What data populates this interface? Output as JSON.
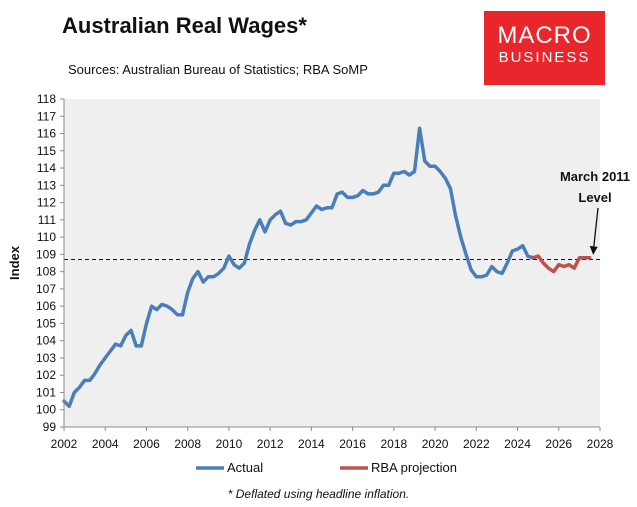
{
  "header": {
    "title": "Australian Real Wages*",
    "sources": "Sources: Australian Bureau of Statistics; RBA SoMP"
  },
  "logo": {
    "line1": "MACRO",
    "line2": "BUSINESS",
    "color": "#e8262b"
  },
  "footnote": "* Deflated using headline inflation.",
  "chart_data": {
    "type": "line",
    "title": "Australian Real Wages*",
    "xlabel": "",
    "ylabel": "Index",
    "xlim": [
      2002,
      2028
    ],
    "ylim": [
      99,
      118
    ],
    "x_ticks": [
      "2002",
      "2004",
      "2006",
      "2008",
      "2010",
      "2012",
      "2014",
      "2016",
      "2018",
      "2020",
      "2022",
      "2024",
      "2026",
      "2028"
    ],
    "y_ticks": [
      "99",
      "100",
      "101",
      "102",
      "103",
      "104",
      "105",
      "106",
      "107",
      "108",
      "109",
      "110",
      "111",
      "112",
      "113",
      "114",
      "115",
      "116",
      "117",
      "118"
    ],
    "grid": false,
    "background": "#efefef",
    "legend": "bottom",
    "reference_line": {
      "y": 108.7,
      "style": "dashed"
    },
    "annotation": {
      "line1": "March 2011",
      "line2": "Level",
      "points_to": [
        2027.5,
        108.8
      ]
    },
    "series": [
      {
        "name": "Actual",
        "color": "#4a7ebb",
        "x": [
          2002.0,
          2002.25,
          2002.5,
          2002.75,
          2003.0,
          2003.25,
          2003.5,
          2003.75,
          2004.0,
          2004.25,
          2004.5,
          2004.75,
          2005.0,
          2005.25,
          2005.5,
          2005.75,
          2006.0,
          2006.25,
          2006.5,
          2006.75,
          2007.0,
          2007.25,
          2007.5,
          2007.75,
          2008.0,
          2008.25,
          2008.5,
          2008.75,
          2009.0,
          2009.25,
          2009.5,
          2009.75,
          2010.0,
          2010.25,
          2010.5,
          2010.75,
          2011.0,
          2011.25,
          2011.5,
          2011.75,
          2012.0,
          2012.25,
          2012.5,
          2012.75,
          2013.0,
          2013.25,
          2013.5,
          2013.75,
          2014.0,
          2014.25,
          2014.5,
          2014.75,
          2015.0,
          2015.25,
          2015.5,
          2015.75,
          2016.0,
          2016.25,
          2016.5,
          2016.75,
          2017.0,
          2017.25,
          2017.5,
          2017.75,
          2018.0,
          2018.25,
          2018.5,
          2018.75,
          2019.0,
          2019.25,
          2019.5,
          2019.75,
          2020.0,
          2020.25,
          2020.5,
          2020.75,
          2021.0,
          2021.25,
          2021.5,
          2021.75,
          2022.0,
          2022.25,
          2022.5,
          2022.75,
          2023.0,
          2023.25,
          2023.5,
          2023.75,
          2024.0,
          2024.25,
          2024.5,
          2024.75
        ],
        "values": [
          100.5,
          100.2,
          101.0,
          101.3,
          101.7,
          101.7,
          102.1,
          102.6,
          103.0,
          103.4,
          103.8,
          103.7,
          104.3,
          104.6,
          103.7,
          103.7,
          105.0,
          106.0,
          105.8,
          106.1,
          106.0,
          105.8,
          105.5,
          105.5,
          106.8,
          107.6,
          108.0,
          107.4,
          107.7,
          107.7,
          107.9,
          108.2,
          108.9,
          108.4,
          108.2,
          108.5,
          109.6,
          110.4,
          111.0,
          110.3,
          111.0,
          111.3,
          111.5,
          110.8,
          110.7,
          110.9,
          110.9,
          111.0,
          111.4,
          111.8,
          111.6,
          111.7,
          111.7,
          112.5,
          112.6,
          112.3,
          112.3,
          112.4,
          112.7,
          112.5,
          112.5,
          112.6,
          113.0,
          113.0,
          113.7,
          113.7,
          113.8,
          113.6,
          113.8,
          116.3,
          114.4,
          114.1,
          114.1,
          113.8,
          113.4,
          112.8,
          111.2,
          110.0,
          109.0,
          108.1,
          107.7,
          107.7,
          107.8,
          108.3,
          108.0,
          107.9,
          108.5,
          109.2,
          109.3,
          109.5,
          108.9,
          108.8
        ]
      },
      {
        "name": "RBA projection",
        "color": "#c0504d",
        "x": [
          2024.75,
          2025.0,
          2025.25,
          2025.5,
          2025.75,
          2026.0,
          2026.25,
          2026.5,
          2026.75,
          2027.0,
          2027.25,
          2027.5
        ],
        "values": [
          108.8,
          108.9,
          108.5,
          108.2,
          108.0,
          108.4,
          108.3,
          108.4,
          108.2,
          108.8,
          108.8,
          108.8
        ]
      }
    ]
  }
}
